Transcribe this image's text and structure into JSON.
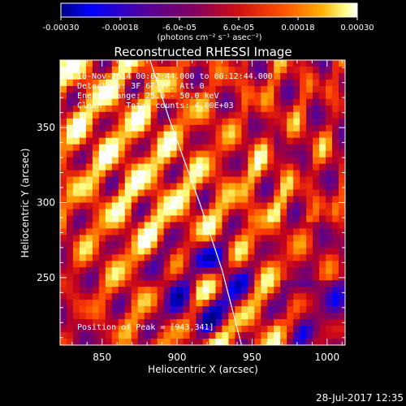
{
  "window": {
    "footer_timestamp": "28-Jul-2017 12:35"
  },
  "chart_data": {
    "type": "heatmap",
    "title": "Reconstructed RHESSI Image",
    "xlabel": "Heliocentric X (arcsec)",
    "ylabel": "Heliocentric Y (arcsec)",
    "xlim": [
      822,
      1012
    ],
    "ylim": [
      205,
      395
    ],
    "x_ticks": [
      850,
      900,
      950,
      1000
    ],
    "y_ticks": [
      250,
      300,
      350
    ],
    "grid": false,
    "colorbar": {
      "range": [
        -0.0003,
        0.0003
      ],
      "tick_labels": [
        "-0.00030",
        "-0.00018",
        "-6.0e-05",
        "6.0e-05",
        "0.00018",
        "0.00030"
      ],
      "units_label": "(photons cm⁻² s⁻¹ asec⁻²)",
      "colormap": [
        "#000080",
        "#0000FF",
        "#5000A0",
        "#800060",
        "#C00020",
        "#FF4000",
        "#FFA000",
        "#FFFF80",
        "#FFFFFF"
      ]
    },
    "annotations": {
      "time_range": "10-Nov-2014 00:02:44.000 to 00:12:44.000",
      "detectors": "Detectors: 3F 6F 9F, Att 0",
      "energy": "Energy Range: 25.0 - 50.0 keV",
      "clean": "Clean     Total counts: 4.00E+03",
      "peak": "Position of Peak = [943,341]"
    },
    "limb_points": [
      [
        882,
        395
      ],
      [
        895,
        355
      ],
      [
        915,
        300
      ],
      [
        930,
        255
      ],
      [
        943,
        205
      ]
    ]
  }
}
